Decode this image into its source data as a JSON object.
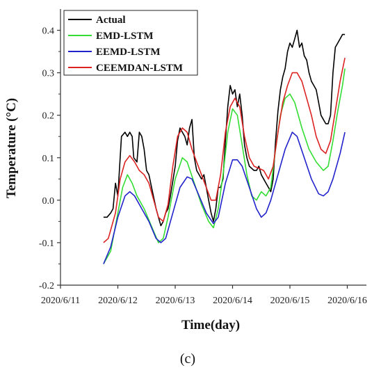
{
  "figure_label": "(c)",
  "chart_data": {
    "type": "line",
    "title": "",
    "xlabel": "Time(day)",
    "ylabel": "Temperature (°C)",
    "x_unit": "day",
    "xlim": [
      "2020-06-11",
      "2020-06-16 08:00"
    ],
    "ylim": [
      -0.2,
      0.45
    ],
    "x_ticks": [
      "2020/6/11",
      "2020/6/12",
      "2020/6/13",
      "2020/6/14",
      "2020/6/15",
      "2020/6/16"
    ],
    "y_ticks": [
      "-0.2",
      "-0.1",
      "0.0",
      "0.1",
      "0.2",
      "0.3",
      "0.4"
    ],
    "grid": false,
    "legend_position": "top-left",
    "series": [
      {
        "name": "Actual",
        "color": "#000000",
        "points": [
          [
            "2020-06-11 18:00",
            -0.04
          ],
          [
            "2020-06-11 19:30",
            -0.04
          ],
          [
            "2020-06-11 21:00",
            -0.03
          ],
          [
            "2020-06-11 22:00",
            -0.02
          ],
          [
            "2020-06-11 23:00",
            0.04
          ],
          [
            "2020-06-12 00:00",
            0.01
          ],
          [
            "2020-06-12 01:30",
            0.15
          ],
          [
            "2020-06-12 03:00",
            0.16
          ],
          [
            "2020-06-12 04:00",
            0.15
          ],
          [
            "2020-06-12 05:00",
            0.16
          ],
          [
            "2020-06-12 06:00",
            0.15
          ],
          [
            "2020-06-12 06:40",
            0.1
          ],
          [
            "2020-06-12 08:00",
            0.09
          ],
          [
            "2020-06-12 09:00",
            0.16
          ],
          [
            "2020-06-12 10:00",
            0.15
          ],
          [
            "2020-06-12 11:00",
            0.12
          ],
          [
            "2020-06-12 12:00",
            0.07
          ],
          [
            "2020-06-12 13:00",
            0.06
          ],
          [
            "2020-06-12 14:30",
            0.02
          ],
          [
            "2020-06-12 16:00",
            -0.02
          ],
          [
            "2020-06-12 17:00",
            -0.04
          ],
          [
            "2020-06-12 18:00",
            -0.06
          ],
          [
            "2020-06-12 19:00",
            -0.05
          ],
          [
            "2020-06-12 20:00",
            -0.03
          ],
          [
            "2020-06-12 21:00",
            -0.02
          ],
          [
            "2020-06-12 22:00",
            0.01
          ],
          [
            "2020-06-13 00:00",
            0.08
          ],
          [
            "2020-06-13 01:00",
            0.14
          ],
          [
            "2020-06-13 02:00",
            0.17
          ],
          [
            "2020-06-13 03:00",
            0.16
          ],
          [
            "2020-06-13 04:00",
            0.15
          ],
          [
            "2020-06-13 05:00",
            0.13
          ],
          [
            "2020-06-13 06:00",
            0.17
          ],
          [
            "2020-06-13 07:00",
            0.19
          ],
          [
            "2020-06-13 08:00",
            0.1
          ],
          [
            "2020-06-13 09:00",
            0.07
          ],
          [
            "2020-06-13 10:00",
            0.06
          ],
          [
            "2020-06-13 11:00",
            0.05
          ],
          [
            "2020-06-13 12:00",
            0.06
          ],
          [
            "2020-06-13 13:00",
            0.03
          ],
          [
            "2020-06-13 14:00",
            0.0
          ],
          [
            "2020-06-13 15:00",
            -0.03
          ],
          [
            "2020-06-13 16:00",
            -0.05
          ],
          [
            "2020-06-13 17:00",
            -0.02
          ],
          [
            "2020-06-13 18:00",
            0.03
          ],
          [
            "2020-06-13 19:00",
            0.03
          ],
          [
            "2020-06-13 20:00",
            0.05
          ],
          [
            "2020-06-13 21:00",
            0.14
          ],
          [
            "2020-06-13 22:00",
            0.22
          ],
          [
            "2020-06-13 23:00",
            0.27
          ],
          [
            "2020-06-14 00:00",
            0.25
          ],
          [
            "2020-06-14 01:00",
            0.26
          ],
          [
            "2020-06-14 02:00",
            0.22
          ],
          [
            "2020-06-14 03:00",
            0.25
          ],
          [
            "2020-06-14 04:00",
            0.2
          ],
          [
            "2020-06-14 05:00",
            0.13
          ],
          [
            "2020-06-14 06:00",
            0.1
          ],
          [
            "2020-06-14 07:00",
            0.08
          ],
          [
            "2020-06-14 09:00",
            0.07
          ],
          [
            "2020-06-14 10:00",
            0.07
          ],
          [
            "2020-06-14 11:00",
            0.08
          ],
          [
            "2020-06-14 12:00",
            0.06
          ],
          [
            "2020-06-14 13:00",
            0.05
          ],
          [
            "2020-06-14 14:00",
            0.04
          ],
          [
            "2020-06-14 15:00",
            0.03
          ],
          [
            "2020-06-14 16:00",
            0.02
          ],
          [
            "2020-06-14 17:00",
            0.05
          ],
          [
            "2020-06-14 18:00",
            0.14
          ],
          [
            "2020-06-14 19:00",
            0.21
          ],
          [
            "2020-06-14 20:00",
            0.26
          ],
          [
            "2020-06-14 21:00",
            0.29
          ],
          [
            "2020-06-14 22:00",
            0.31
          ],
          [
            "2020-06-14 23:00",
            0.35
          ],
          [
            "2020-06-15 00:00",
            0.37
          ],
          [
            "2020-06-15 01:00",
            0.36
          ],
          [
            "2020-06-15 02:00",
            0.38
          ],
          [
            "2020-06-15 03:00",
            0.4
          ],
          [
            "2020-06-15 04:00",
            0.36
          ],
          [
            "2020-06-15 05:00",
            0.37
          ],
          [
            "2020-06-15 06:00",
            0.34
          ],
          [
            "2020-06-15 07:00",
            0.33
          ],
          [
            "2020-06-15 08:00",
            0.3
          ],
          [
            "2020-06-15 09:00",
            0.28
          ],
          [
            "2020-06-15 10:00",
            0.27
          ],
          [
            "2020-06-15 11:00",
            0.26
          ],
          [
            "2020-06-15 12:00",
            0.23
          ],
          [
            "2020-06-15 13:00",
            0.2
          ],
          [
            "2020-06-15 14:00",
            0.19
          ],
          [
            "2020-06-15 15:00",
            0.18
          ],
          [
            "2020-06-15 16:00",
            0.18
          ],
          [
            "2020-06-15 17:00",
            0.2
          ],
          [
            "2020-06-15 18:00",
            0.3
          ],
          [
            "2020-06-15 19:00",
            0.36
          ],
          [
            "2020-06-15 20:00",
            0.37
          ],
          [
            "2020-06-15 21:00",
            0.38
          ],
          [
            "2020-06-15 22:00",
            0.39
          ],
          [
            "2020-06-15 23:00",
            0.39
          ]
        ]
      },
      {
        "name": "EMD-LSTM",
        "color": "#33dd33",
        "points": [
          [
            "2020-06-11 18:00",
            -0.15
          ],
          [
            "2020-06-11 21:00",
            -0.12
          ],
          [
            "2020-06-11 23:00",
            -0.06
          ],
          [
            "2020-06-12 02:00",
            0.03
          ],
          [
            "2020-06-12 04:00",
            0.06
          ],
          [
            "2020-06-12 06:00",
            0.04
          ],
          [
            "2020-06-12 08:00",
            0.01
          ],
          [
            "2020-06-12 11:00",
            -0.02
          ],
          [
            "2020-06-12 14:00",
            -0.06
          ],
          [
            "2020-06-12 17:00",
            -0.1
          ],
          [
            "2020-06-12 19:00",
            -0.09
          ],
          [
            "2020-06-12 21:00",
            -0.04
          ],
          [
            "2020-06-13 00:00",
            0.05
          ],
          [
            "2020-06-13 03:00",
            0.1
          ],
          [
            "2020-06-13 05:00",
            0.09
          ],
          [
            "2020-06-13 08:00",
            0.04
          ],
          [
            "2020-06-13 11:00",
            -0.01
          ],
          [
            "2020-06-13 14:00",
            -0.05
          ],
          [
            "2020-06-13 16:00",
            -0.065
          ],
          [
            "2020-06-13 18:00",
            -0.02
          ],
          [
            "2020-06-13 20:00",
            0.06
          ],
          [
            "2020-06-13 22:00",
            0.16
          ],
          [
            "2020-06-14 00:00",
            0.215
          ],
          [
            "2020-06-14 02:00",
            0.2
          ],
          [
            "2020-06-14 04:00",
            0.13
          ],
          [
            "2020-06-14 06:00",
            0.06
          ],
          [
            "2020-06-14 08:00",
            0.01
          ],
          [
            "2020-06-14 10:00",
            0.0
          ],
          [
            "2020-06-14 12:00",
            0.02
          ],
          [
            "2020-06-14 14:00",
            0.01
          ],
          [
            "2020-06-14 16:00",
            0.03
          ],
          [
            "2020-06-14 18:00",
            0.12
          ],
          [
            "2020-06-14 20:00",
            0.2
          ],
          [
            "2020-06-14 22:00",
            0.24
          ],
          [
            "2020-06-15 00:00",
            0.25
          ],
          [
            "2020-06-15 02:00",
            0.23
          ],
          [
            "2020-06-15 05:00",
            0.17
          ],
          [
            "2020-06-15 08:00",
            0.12
          ],
          [
            "2020-06-15 11:00",
            0.09
          ],
          [
            "2020-06-15 14:00",
            0.07
          ],
          [
            "2020-06-15 16:00",
            0.08
          ],
          [
            "2020-06-15 18:00",
            0.14
          ],
          [
            "2020-06-15 20:00",
            0.21
          ],
          [
            "2020-06-15 22:00",
            0.27
          ],
          [
            "2020-06-15 23:00",
            0.31
          ]
        ]
      },
      {
        "name": "EEMD-LSTM",
        "color": "#2222cc",
        "points": [
          [
            "2020-06-11 18:00",
            -0.15
          ],
          [
            "2020-06-11 21:00",
            -0.11
          ],
          [
            "2020-06-12 00:00",
            -0.04
          ],
          [
            "2020-06-12 03:00",
            0.01
          ],
          [
            "2020-06-12 05:00",
            0.02
          ],
          [
            "2020-06-12 07:00",
            0.01
          ],
          [
            "2020-06-12 10:00",
            -0.02
          ],
          [
            "2020-06-12 13:00",
            -0.05
          ],
          [
            "2020-06-12 16:00",
            -0.09
          ],
          [
            "2020-06-12 18:00",
            -0.1
          ],
          [
            "2020-06-12 20:00",
            -0.09
          ],
          [
            "2020-06-12 23:00",
            -0.03
          ],
          [
            "2020-06-13 02:00",
            0.03
          ],
          [
            "2020-06-13 05:00",
            0.055
          ],
          [
            "2020-06-13 07:00",
            0.05
          ],
          [
            "2020-06-13 10:00",
            0.01
          ],
          [
            "2020-06-13 13:00",
            -0.03
          ],
          [
            "2020-06-13 16:00",
            -0.055
          ],
          [
            "2020-06-13 18:00",
            -0.04
          ],
          [
            "2020-06-13 21:00",
            0.04
          ],
          [
            "2020-06-14 00:00",
            0.095
          ],
          [
            "2020-06-14 02:00",
            0.095
          ],
          [
            "2020-06-14 04:00",
            0.08
          ],
          [
            "2020-06-14 07:00",
            0.03
          ],
          [
            "2020-06-14 10:00",
            -0.02
          ],
          [
            "2020-06-14 12:00",
            -0.04
          ],
          [
            "2020-06-14 14:00",
            -0.03
          ],
          [
            "2020-06-14 16:00",
            0.0
          ],
          [
            "2020-06-14 19:00",
            0.06
          ],
          [
            "2020-06-14 22:00",
            0.12
          ],
          [
            "2020-06-15 01:00",
            0.16
          ],
          [
            "2020-06-15 03:00",
            0.15
          ],
          [
            "2020-06-15 06:00",
            0.1
          ],
          [
            "2020-06-15 09:00",
            0.05
          ],
          [
            "2020-06-15 12:00",
            0.015
          ],
          [
            "2020-06-15 14:00",
            0.01
          ],
          [
            "2020-06-15 16:00",
            0.02
          ],
          [
            "2020-06-15 18:00",
            0.05
          ],
          [
            "2020-06-15 21:00",
            0.11
          ],
          [
            "2020-06-15 23:00",
            0.16
          ]
        ]
      },
      {
        "name": "CEEMDAN-LSTM",
        "color": "#dd2222",
        "points": [
          [
            "2020-06-11 18:00",
            -0.1
          ],
          [
            "2020-06-11 20:00",
            -0.09
          ],
          [
            "2020-06-11 23:00",
            -0.03
          ],
          [
            "2020-06-12 01:00",
            0.05
          ],
          [
            "2020-06-12 03:00",
            0.09
          ],
          [
            "2020-06-12 05:00",
            0.105
          ],
          [
            "2020-06-12 07:00",
            0.09
          ],
          [
            "2020-06-12 09:00",
            0.07
          ],
          [
            "2020-06-12 11:00",
            0.06
          ],
          [
            "2020-06-12 13:00",
            0.04
          ],
          [
            "2020-06-12 15:00",
            0.0
          ],
          [
            "2020-06-12 17:00",
            -0.04
          ],
          [
            "2020-06-12 19:00",
            -0.05
          ],
          [
            "2020-06-12 21:00",
            -0.01
          ],
          [
            "2020-06-12 23:00",
            0.08
          ],
          [
            "2020-06-13 01:00",
            0.15
          ],
          [
            "2020-06-13 03:00",
            0.17
          ],
          [
            "2020-06-13 05:00",
            0.16
          ],
          [
            "2020-06-13 07:00",
            0.12
          ],
          [
            "2020-06-13 09:00",
            0.09
          ],
          [
            "2020-06-13 11:00",
            0.06
          ],
          [
            "2020-06-13 13:00",
            0.03
          ],
          [
            "2020-06-13 15:00",
            0.0
          ],
          [
            "2020-06-13 17:00",
            0.0
          ],
          [
            "2020-06-13 19:00",
            0.06
          ],
          [
            "2020-06-13 21:00",
            0.16
          ],
          [
            "2020-06-13 23:00",
            0.22
          ],
          [
            "2020-06-14 01:00",
            0.24
          ],
          [
            "2020-06-14 03:00",
            0.22
          ],
          [
            "2020-06-14 05:00",
            0.15
          ],
          [
            "2020-06-14 07:00",
            0.1
          ],
          [
            "2020-06-14 09:00",
            0.08
          ],
          [
            "2020-06-14 11:00",
            0.075
          ],
          [
            "2020-06-14 13:00",
            0.07
          ],
          [
            "2020-06-14 15:00",
            0.05
          ],
          [
            "2020-06-14 17:00",
            0.08
          ],
          [
            "2020-06-14 19:00",
            0.16
          ],
          [
            "2020-06-14 21:00",
            0.23
          ],
          [
            "2020-06-14 23:00",
            0.27
          ],
          [
            "2020-06-15 01:00",
            0.3
          ],
          [
            "2020-06-15 03:00",
            0.3
          ],
          [
            "2020-06-15 05:00",
            0.28
          ],
          [
            "2020-06-15 07:00",
            0.24
          ],
          [
            "2020-06-15 09:00",
            0.2
          ],
          [
            "2020-06-15 11:00",
            0.15
          ],
          [
            "2020-06-15 13:00",
            0.12
          ],
          [
            "2020-06-15 15:00",
            0.11
          ],
          [
            "2020-06-15 17:00",
            0.14
          ],
          [
            "2020-06-15 19:00",
            0.21
          ],
          [
            "2020-06-15 21:00",
            0.28
          ],
          [
            "2020-06-15 23:00",
            0.335
          ]
        ]
      }
    ]
  }
}
